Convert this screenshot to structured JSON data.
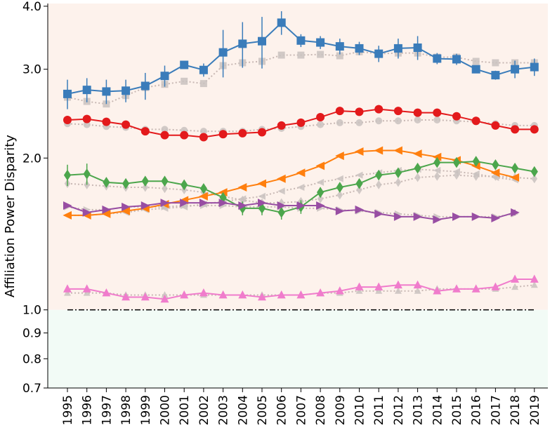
{
  "chart_data": {
    "type": "line",
    "title": "",
    "xlabel": "",
    "ylabel": "Affiliation Power Disparity",
    "yscale": "log",
    "ylim": [
      0.7,
      4.05
    ],
    "yticks": [
      "0.7",
      "0.8",
      "0.9",
      "1.0",
      "2.0",
      "3.0",
      "4.0"
    ],
    "categories": [
      "1995",
      "1996",
      "1997",
      "1998",
      "1999",
      "2000",
      "2001",
      "2002",
      "2003",
      "2004",
      "2005",
      "2006",
      "2007",
      "2008",
      "2009",
      "2010",
      "2011",
      "2012",
      "2013",
      "2014",
      "2015",
      "2016",
      "2017",
      "2018",
      "2019"
    ],
    "regions": {
      "above_one_color": "#fdf2ec",
      "below_one_color": "#f2fbf6",
      "reference_line": 1.0
    },
    "series": [
      {
        "name": "blue-square",
        "color": "#3a7cba",
        "marker": "square",
        "values": [
          2.68,
          2.73,
          2.71,
          2.72,
          2.78,
          2.91,
          3.06,
          2.99,
          3.24,
          3.37,
          3.41,
          3.71,
          3.42,
          3.39,
          3.33,
          3.3,
          3.22,
          3.3,
          3.31,
          3.15,
          3.14,
          3.0,
          2.92,
          3.0,
          3.03
        ],
        "errors": [
          0.18,
          0.15,
          0.15,
          0.14,
          0.17,
          0.14,
          0.05,
          0.09,
          0.35,
          0.35,
          0.4,
          0.2,
          0.1,
          0.1,
          0.12,
          0.1,
          0.12,
          0.15,
          0.18,
          0.08,
          0.08,
          0.05,
          0.06,
          0.12,
          0.12
        ],
        "baseline": [
          2.64,
          2.59,
          2.56,
          2.66,
          2.76,
          2.8,
          2.84,
          2.81,
          3.05,
          3.09,
          3.11,
          3.2,
          3.2,
          3.21,
          3.19,
          3.25,
          3.22,
          3.23,
          3.23,
          3.17,
          3.17,
          3.11,
          3.09,
          3.09,
          3.09
        ]
      },
      {
        "name": "red-circle",
        "color": "#e31a1c",
        "marker": "circle",
        "values": [
          2.38,
          2.39,
          2.36,
          2.33,
          2.26,
          2.22,
          2.22,
          2.2,
          2.23,
          2.24,
          2.25,
          2.32,
          2.35,
          2.41,
          2.48,
          2.47,
          2.5,
          2.48,
          2.46,
          2.46,
          2.42,
          2.37,
          2.32,
          2.28,
          2.28
        ],
        "errors": [
          0.02,
          0.02,
          0.02,
          0.02,
          0.03,
          0.02,
          0.02,
          0.02,
          0.02,
          0.02,
          0.02,
          0.02,
          0.02,
          0.02,
          0.02,
          0.02,
          0.02,
          0.02,
          0.02,
          0.02,
          0.02,
          0.02,
          0.02,
          0.02,
          0.02
        ],
        "baseline": [
          2.34,
          2.33,
          2.31,
          2.3,
          2.28,
          2.28,
          2.27,
          2.26,
          2.26,
          2.26,
          2.28,
          2.29,
          2.31,
          2.33,
          2.35,
          2.35,
          2.37,
          2.37,
          2.38,
          2.38,
          2.37,
          2.36,
          2.34,
          2.32,
          2.32
        ]
      },
      {
        "name": "orange-left-triangle",
        "color": "#ff7f0e",
        "marker": "triangle-left",
        "values": [
          1.54,
          1.54,
          1.55,
          1.57,
          1.59,
          1.62,
          1.65,
          1.68,
          1.71,
          1.75,
          1.78,
          1.82,
          1.87,
          1.93,
          2.02,
          2.06,
          2.07,
          2.07,
          2.04,
          2.01,
          1.98,
          1.93,
          1.87,
          1.83,
          null
        ],
        "errors": [],
        "baseline": [
          1.54,
          1.54,
          1.55,
          1.56,
          1.58,
          1.59,
          1.6,
          1.62,
          1.64,
          1.66,
          1.68,
          1.72,
          1.75,
          1.79,
          1.82,
          1.85,
          1.87,
          1.89,
          1.9,
          1.89,
          1.88,
          1.86,
          1.83,
          1.81,
          null
        ]
      },
      {
        "name": "green-diamond",
        "color": "#4ca64c",
        "marker": "diamond",
        "values": [
          1.85,
          1.86,
          1.79,
          1.78,
          1.8,
          1.8,
          1.77,
          1.74,
          1.67,
          1.59,
          1.59,
          1.56,
          1.6,
          1.71,
          1.75,
          1.78,
          1.85,
          1.87,
          1.91,
          1.96,
          1.96,
          1.97,
          1.94,
          1.91,
          1.88
        ],
        "errors": [
          0.09,
          0.09,
          0.04,
          0.04,
          0.03,
          0.03,
          0.04,
          0.03,
          0.03,
          0.05,
          0.05,
          0.05,
          0.05,
          0.04,
          0.03,
          0.03,
          0.02,
          0.02,
          0.02,
          0.02,
          0.02,
          0.02,
          0.02,
          0.02,
          0.02
        ],
        "baseline": [
          1.78,
          1.77,
          1.76,
          1.75,
          1.75,
          1.74,
          1.73,
          1.71,
          1.68,
          1.65,
          1.63,
          1.63,
          1.64,
          1.66,
          1.69,
          1.73,
          1.77,
          1.79,
          1.83,
          1.84,
          1.85,
          1.84,
          1.84,
          1.83,
          1.82
        ]
      },
      {
        "name": "purple-right-triangle",
        "color": "#984ea3",
        "marker": "triangle-right",
        "values": [
          1.61,
          1.56,
          1.58,
          1.6,
          1.61,
          1.63,
          1.63,
          1.63,
          1.63,
          1.61,
          1.63,
          1.61,
          1.61,
          1.61,
          1.57,
          1.58,
          1.55,
          1.53,
          1.53,
          1.51,
          1.53,
          1.53,
          1.52,
          1.56,
          null
        ],
        "errors": [
          0.01,
          0.01,
          0.01,
          0.01,
          0.01,
          0.01,
          0.01,
          0.01,
          0.01,
          0.01,
          0.01,
          0.01,
          0.01,
          0.01,
          0.01,
          0.01,
          0.01,
          0.01,
          0.01,
          0.01,
          0.01,
          0.01,
          0.01,
          0.02,
          null
        ],
        "baseline": [
          1.6,
          1.58,
          1.58,
          1.6,
          1.6,
          1.6,
          1.61,
          1.61,
          1.61,
          1.6,
          1.6,
          1.6,
          1.59,
          1.59,
          1.58,
          1.57,
          1.56,
          1.55,
          1.54,
          1.53,
          1.53,
          1.53,
          1.53,
          1.55,
          null
        ]
      },
      {
        "name": "pink-up-triangle",
        "color": "#f07ccc",
        "marker": "triangle-up",
        "values": [
          1.1,
          1.1,
          1.08,
          1.06,
          1.06,
          1.05,
          1.07,
          1.08,
          1.07,
          1.07,
          1.06,
          1.07,
          1.07,
          1.08,
          1.09,
          1.11,
          1.11,
          1.12,
          1.12,
          1.09,
          1.1,
          1.1,
          1.11,
          1.15,
          1.15
        ],
        "errors": [],
        "baseline": [
          1.08,
          1.08,
          1.08,
          1.07,
          1.07,
          1.07,
          1.07,
          1.07,
          1.07,
          1.07,
          1.07,
          1.07,
          1.07,
          1.08,
          1.08,
          1.09,
          1.09,
          1.09,
          1.09,
          1.1,
          1.1,
          1.1,
          1.1,
          1.11,
          1.12
        ]
      }
    ]
  }
}
